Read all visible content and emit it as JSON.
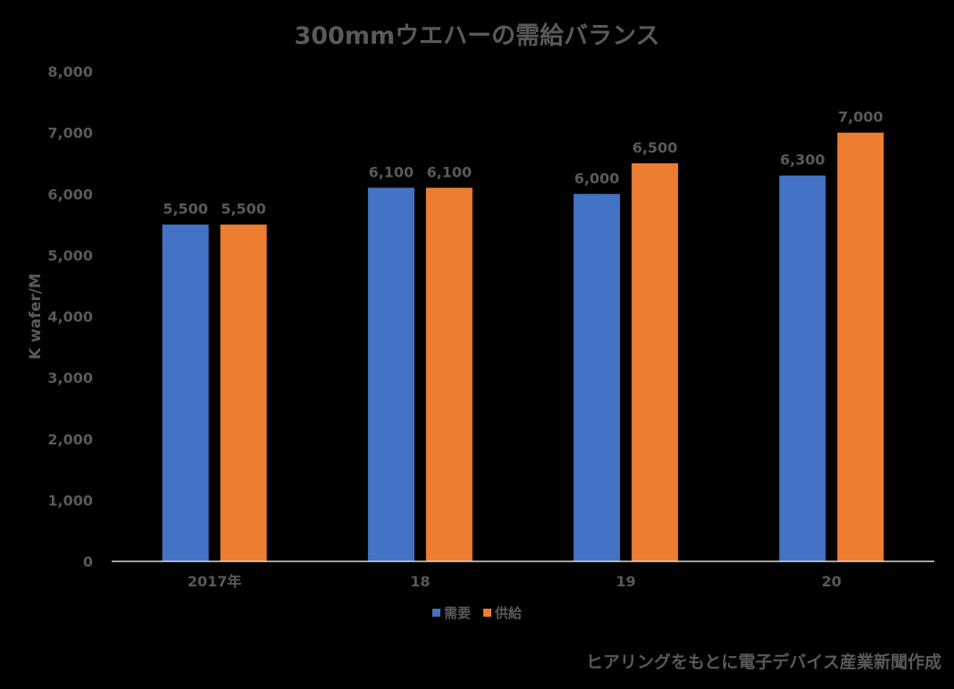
{
  "colors": {
    "background": "#000000",
    "demand": "#4472C4",
    "supply": "#ED7D31",
    "text": "#595959",
    "axis": "#D9D9D9"
  },
  "chart_data": {
    "type": "bar",
    "title": "300mmウエハーの需給バランス",
    "ylabel": "K wafer/M",
    "xlabel": "",
    "categories": [
      "2017年",
      "18",
      "19",
      "20"
    ],
    "series": [
      {
        "name": "需要",
        "values": [
          5500,
          6100,
          6000,
          6300
        ],
        "labels": [
          "5,500",
          "6,100",
          "6,000",
          "6,300"
        ]
      },
      {
        "name": "供給",
        "values": [
          5500,
          6100,
          6500,
          7000
        ],
        "labels": [
          "5,500",
          "6,100",
          "6,500",
          "7,000"
        ]
      }
    ],
    "ylim": [
      0,
      8000
    ],
    "yticks": [
      0,
      1000,
      2000,
      3000,
      4000,
      5000,
      6000,
      7000,
      8000
    ],
    "ytick_labels": [
      "0",
      "1,000",
      "2,000",
      "3,000",
      "4,000",
      "5,000",
      "6,000",
      "7,000",
      "8,000"
    ],
    "grid": false,
    "legend_position": "bottom",
    "data_labels": true
  },
  "source_note": "ヒアリングをもとに電子デバイス産業新聞作成"
}
